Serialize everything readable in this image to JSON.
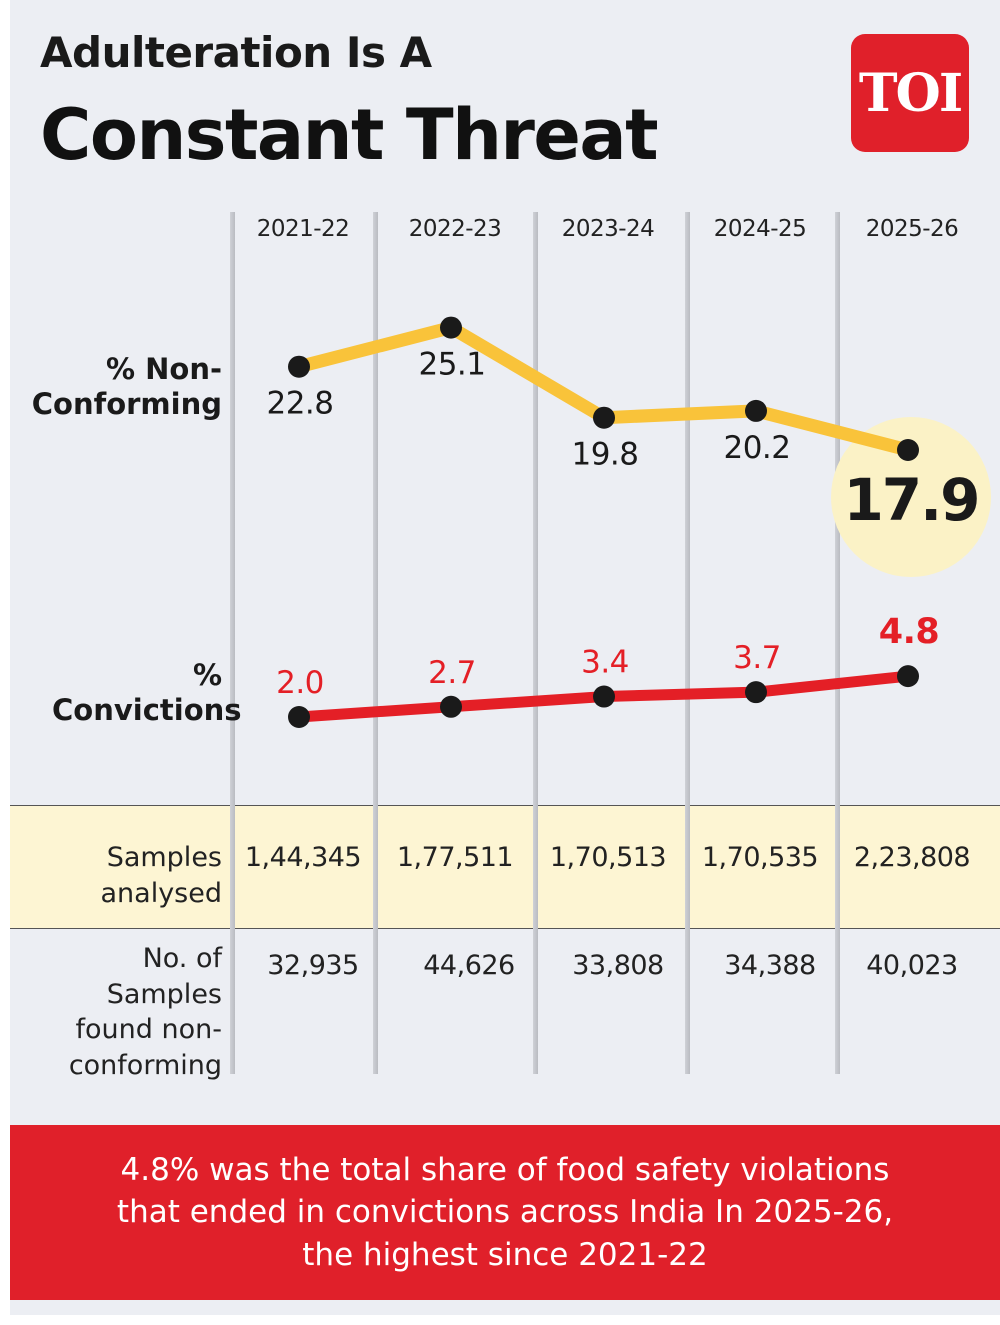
{
  "title": {
    "line1": "Adulteration Is A",
    "line2": "Constant Threat"
  },
  "logo": {
    "text": "TOI",
    "color": "#e0202a"
  },
  "years": [
    "2021-22",
    "2022-23",
    "2023-24",
    "2024-25",
    "2025-26"
  ],
  "labels": {
    "non_conforming": "% Non-Conforming",
    "convictions": "% Convictions",
    "samples_analysed": "Samples analysed",
    "samples_non_conforming": "No. of Samples found non-conforming"
  },
  "chart_data": [
    {
      "type": "line",
      "categories": [
        "2021-22",
        "2022-23",
        "2023-24",
        "2024-25",
        "2025-26"
      ],
      "series": [
        {
          "name": "% Non-Conforming",
          "values": [
            22.8,
            25.1,
            19.8,
            20.2,
            17.9
          ],
          "color": "#f9c33a"
        }
      ],
      "value_labels": [
        "22.8",
        "25.1",
        "19.8",
        "20.2",
        "17.9"
      ],
      "highlight": {
        "index": 4,
        "color": "#fbf2c6"
      }
    },
    {
      "type": "line",
      "categories": [
        "2021-22",
        "2022-23",
        "2023-24",
        "2024-25",
        "2025-26"
      ],
      "series": [
        {
          "name": "% Convictions",
          "values": [
            2.0,
            2.7,
            3.4,
            3.7,
            4.8
          ],
          "color": "#e41f26"
        }
      ],
      "value_labels": [
        "2.0",
        "2.7",
        "3.4",
        "3.7",
        "4.8"
      ],
      "highlight": {
        "index": 4
      }
    }
  ],
  "table": {
    "samples_analysed": [
      "1,44,345",
      "1,77,511",
      "1,70,513",
      "1,70,535",
      "2,23,808"
    ],
    "samples_non_conforming": [
      "32,935",
      "44,626",
      "33,808",
      "34,388",
      "40,023"
    ]
  },
  "footer": {
    "text": "4.8% was the total share of food safety violations that ended in convictions across India In 2025-26, the highest since 2021-22"
  },
  "colors": {
    "background": "#eceef3",
    "accent_red": "#e41f26",
    "accent_yellow": "#f9c33a",
    "band": "#fdf5d3"
  }
}
